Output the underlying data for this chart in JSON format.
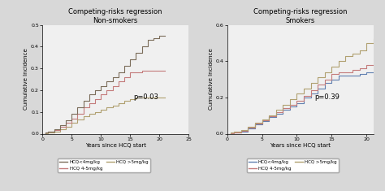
{
  "left_title": "Competing-risks regression",
  "left_subtitle": "Non-smokers",
  "right_title": "Competing-risks regression",
  "right_subtitle": "Smokers",
  "ylabel": "Cumulative Incidence",
  "xlabel": "Years since HCQ start",
  "p_left": "p=0.03",
  "p_right": "p=0.39",
  "left_xlim": [
    0,
    25
  ],
  "left_ylim": [
    0,
    0.5
  ],
  "right_xlim": [
    0,
    21
  ],
  "right_ylim": [
    0,
    0.6
  ],
  "left_xticks": [
    0,
    5,
    10,
    15,
    20,
    25
  ],
  "right_xticks": [
    0,
    5,
    10,
    15,
    20
  ],
  "left_yticks": [
    0,
    0.1,
    0.2,
    0.3,
    0.4,
    0.5
  ],
  "right_yticks": [
    0,
    0.2,
    0.4,
    0.6
  ],
  "colors_left": {
    "low": "#7b6d5a",
    "mid": "#c47b7b",
    "high": "#b0a070"
  },
  "colors_right": {
    "low": "#6080b0",
    "mid": "#c47b7b",
    "high": "#b0a070"
  },
  "legend_labels": [
    "HCQ<4mg/kg",
    "HCQ 4-5mg/kg",
    "HCQ >5mg/kg"
  ],
  "bg_color": "#d8d8d8",
  "plot_bg": "#f0f0f0",
  "left_lines": {
    "low": {
      "x": [
        0,
        0.5,
        1,
        2,
        3,
        4,
        5,
        6,
        7,
        8,
        9,
        10,
        11,
        12,
        13,
        14,
        15,
        16,
        17,
        18,
        19,
        20,
        21
      ],
      "y": [
        0,
        0.005,
        0.01,
        0.02,
        0.04,
        0.06,
        0.09,
        0.12,
        0.15,
        0.18,
        0.2,
        0.22,
        0.24,
        0.26,
        0.28,
        0.31,
        0.34,
        0.37,
        0.4,
        0.43,
        0.44,
        0.45,
        0.45
      ]
    },
    "mid": {
      "x": [
        0,
        0.5,
        1,
        2,
        3,
        4,
        5,
        6,
        7,
        8,
        9,
        10,
        11,
        12,
        13,
        14,
        15,
        16,
        17,
        18,
        19,
        20,
        21
      ],
      "y": [
        0,
        0.004,
        0.008,
        0.015,
        0.03,
        0.05,
        0.07,
        0.09,
        0.12,
        0.14,
        0.16,
        0.18,
        0.2,
        0.22,
        0.24,
        0.26,
        0.28,
        0.28,
        0.29,
        0.29,
        0.29,
        0.29,
        0.29
      ]
    },
    "high": {
      "x": [
        0,
        0.5,
        1,
        2,
        3,
        4,
        5,
        6,
        7,
        8,
        9,
        10,
        11,
        12,
        13,
        14,
        15,
        16,
        17,
        18,
        19,
        20,
        21
      ],
      "y": [
        0,
        0.003,
        0.006,
        0.01,
        0.02,
        0.03,
        0.05,
        0.065,
        0.08,
        0.09,
        0.1,
        0.11,
        0.12,
        0.13,
        0.14,
        0.15,
        0.16,
        0.165,
        0.165,
        0.165,
        0.165,
        0.165,
        0.165
      ]
    }
  },
  "right_lines": {
    "high": {
      "x": [
        0,
        0.5,
        1,
        2,
        3,
        4,
        5,
        6,
        7,
        8,
        9,
        10,
        11,
        12,
        13,
        14,
        15,
        16,
        17,
        18,
        19,
        20,
        21
      ],
      "y": [
        0,
        0.005,
        0.01,
        0.02,
        0.04,
        0.06,
        0.08,
        0.1,
        0.13,
        0.16,
        0.19,
        0.22,
        0.25,
        0.28,
        0.31,
        0.34,
        0.37,
        0.4,
        0.43,
        0.44,
        0.46,
        0.5,
        0.52
      ]
    },
    "mid": {
      "x": [
        0,
        0.5,
        1,
        2,
        3,
        4,
        5,
        6,
        7,
        8,
        9,
        10,
        11,
        12,
        13,
        14,
        15,
        16,
        17,
        18,
        19,
        20,
        21
      ],
      "y": [
        0,
        0.004,
        0.008,
        0.016,
        0.035,
        0.055,
        0.075,
        0.095,
        0.12,
        0.14,
        0.16,
        0.18,
        0.21,
        0.24,
        0.27,
        0.3,
        0.33,
        0.34,
        0.34,
        0.35,
        0.36,
        0.38,
        0.38
      ]
    },
    "low": {
      "x": [
        0,
        0.5,
        1,
        2,
        3,
        4,
        5,
        6,
        7,
        8,
        9,
        10,
        11,
        12,
        13,
        14,
        15,
        16,
        17,
        18,
        19,
        20,
        21
      ],
      "y": [
        0,
        0.003,
        0.006,
        0.012,
        0.03,
        0.05,
        0.07,
        0.09,
        0.11,
        0.13,
        0.15,
        0.17,
        0.2,
        0.22,
        0.25,
        0.28,
        0.3,
        0.32,
        0.32,
        0.32,
        0.33,
        0.34,
        0.34
      ]
    }
  }
}
